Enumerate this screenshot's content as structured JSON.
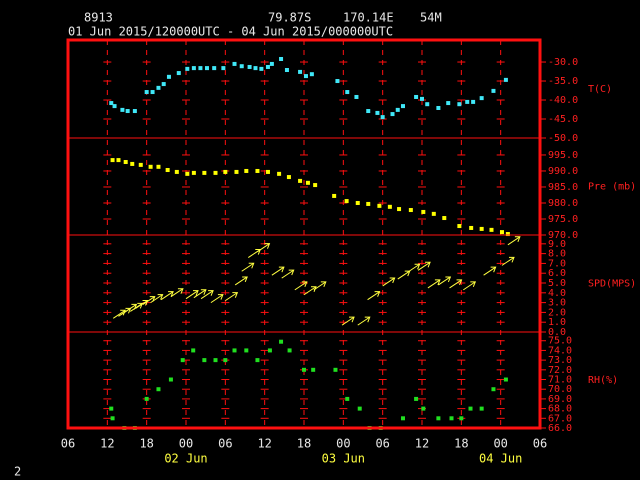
{
  "header": {
    "station": "8913",
    "lat": "79.87S",
    "lon": "170.14E",
    "elev": "54M",
    "period": "01 Jun 2015/120000UTC - 04 Jun 2015/000000UTC",
    "page": "2"
  },
  "x_axis": {
    "xlim": [
      0,
      72
    ],
    "xticks": [
      {
        "value": 0,
        "label": "06"
      },
      {
        "value": 6,
        "label": "12"
      },
      {
        "value": 12,
        "label": "18"
      },
      {
        "value": 18,
        "label": "00"
      },
      {
        "value": 24,
        "label": "06"
      },
      {
        "value": 30,
        "label": "12"
      },
      {
        "value": 36,
        "label": "18"
      },
      {
        "value": 42,
        "label": "00"
      },
      {
        "value": 48,
        "label": "06"
      },
      {
        "value": 54,
        "label": "12"
      },
      {
        "value": 60,
        "label": "18"
      },
      {
        "value": 66,
        "label": "00"
      },
      {
        "value": 72,
        "label": "06"
      }
    ],
    "dates": [
      {
        "value": 18,
        "label": "02 Jun"
      },
      {
        "value": 42,
        "label": "03 Jun"
      },
      {
        "value": 66,
        "label": "04 Jun"
      }
    ]
  },
  "chart_data": [
    {
      "type": "scatter",
      "label": "T(C)",
      "color": "#40e8f8",
      "ylim": [
        -50,
        -24.2
      ],
      "yticks": [
        {
          "value": -30,
          "label": "-30.0"
        },
        {
          "value": -35,
          "label": "-35.0"
        },
        {
          "value": -40,
          "label": "-40.0"
        },
        {
          "value": -45,
          "label": "-45.0"
        },
        {
          "value": -50,
          "label": "-50.0"
        }
      ],
      "x": [
        6.6,
        7.1,
        8.3,
        9.1,
        10.2,
        12.0,
        12.9,
        13.8,
        14.6,
        15.4,
        16.9,
        18.2,
        19.2,
        20.2,
        21.2,
        22.3,
        23.7,
        25.4,
        26.5,
        27.7,
        28.6,
        29.5,
        30.5,
        31.1,
        32.5,
        33.4,
        35.4,
        36.3,
        37.2,
        41.1,
        42.6,
        44.0,
        45.8,
        47.2,
        48.0,
        49.5,
        50.3,
        51.1,
        53.1,
        54.0,
        54.8,
        56.5,
        58.0,
        59.7,
        60.9,
        61.8,
        63.1,
        64.9,
        66.8
      ],
      "values": [
        -40.8,
        -41.6,
        -42.6,
        -42.9,
        -42.9,
        -37.9,
        -37.9,
        -36.8,
        -35.8,
        -33.9,
        -32.9,
        -31.8,
        -31.6,
        -31.6,
        -31.6,
        -31.6,
        -31.6,
        -30.5,
        -31.1,
        -31.3,
        -31.6,
        -31.8,
        -31.3,
        -30.5,
        -29.2,
        -32.1,
        -32.6,
        -33.7,
        -33.2,
        -35.0,
        -37.9,
        -39.2,
        -42.9,
        -43.4,
        -44.5,
        -43.7,
        -42.6,
        -41.6,
        -39.2,
        -39.7,
        -41.1,
        -42.1,
        -40.8,
        -41.1,
        -40.5,
        -40.5,
        -39.5,
        -37.6,
        -34.7
      ]
    },
    {
      "type": "scatter",
      "label": "Pre (mb)",
      "color": "#ffff00",
      "ylim": [
        970,
        1000.3
      ],
      "yticks": [
        {
          "value": 995,
          "label": "995.0"
        },
        {
          "value": 990,
          "label": "990.0"
        },
        {
          "value": 985,
          "label": "985.0"
        },
        {
          "value": 980,
          "label": "980.0"
        },
        {
          "value": 975,
          "label": "975.0"
        },
        {
          "value": 970,
          "label": "970.0"
        }
      ],
      "x": [
        6.8,
        7.7,
        8.8,
        9.8,
        11.1,
        12.6,
        13.8,
        15.2,
        16.6,
        18.2,
        19.2,
        20.8,
        22.5,
        24.0,
        25.7,
        27.2,
        28.9,
        30.5,
        32.2,
        33.7,
        35.4,
        36.6,
        37.7,
        40.6,
        42.5,
        44.2,
        45.8,
        47.5,
        49.1,
        50.5,
        52.3,
        54.2,
        55.8,
        57.4,
        59.7,
        61.5,
        63.1,
        64.6,
        66.2,
        67.1
      ],
      "values": [
        993.4,
        993.4,
        992.8,
        992.2,
        991.9,
        991.3,
        991.3,
        990.3,
        989.7,
        989.1,
        989.4,
        989.4,
        989.4,
        989.7,
        989.7,
        990.0,
        990.0,
        989.7,
        989.1,
        988.1,
        986.9,
        986.3,
        985.6,
        982.2,
        980.6,
        980.0,
        979.7,
        979.1,
        978.8,
        978.1,
        977.8,
        977.2,
        976.6,
        975.3,
        972.8,
        972.2,
        971.9,
        971.6,
        970.9,
        970.3
      ]
    },
    {
      "type": "vector",
      "label": "SPD(MPS)",
      "color": "#ffff40",
      "ylim": [
        0,
        9.9
      ],
      "yticks": [
        {
          "value": 9,
          "label": "9.0"
        },
        {
          "value": 8,
          "label": "8.0"
        },
        {
          "value": 7,
          "label": "7.0"
        },
        {
          "value": 6,
          "label": "6.0"
        },
        {
          "value": 5,
          "label": "5.0"
        },
        {
          "value": 4,
          "label": "4.0"
        },
        {
          "value": 3,
          "label": "3.0"
        },
        {
          "value": 2,
          "label": "2.0"
        },
        {
          "value": 1,
          "label": "1.0"
        },
        {
          "value": 0,
          "label": "0.0"
        }
      ],
      "x": [
        6.9,
        7.7,
        8.6,
        9.5,
        10.3,
        11.4,
        12.6,
        14.2,
        15.7,
        18.0,
        19.2,
        20.3,
        21.8,
        24.0,
        25.5,
        26.5,
        27.5,
        28.9,
        31.1,
        32.6,
        34.6,
        36.0,
        37.5,
        41.8,
        44.2,
        45.7,
        48.0,
        50.3,
        51.8,
        53.4,
        54.9,
        56.5,
        58.2,
        60.3,
        63.4,
        66.2,
        67.1
      ],
      "values": [
        1.4,
        1.6,
        2.0,
        2.1,
        2.4,
        2.8,
        3.0,
        3.3,
        3.6,
        3.4,
        3.5,
        3.4,
        3.0,
        3.2,
        4.8,
        6.2,
        7.6,
        8.2,
        5.8,
        5.5,
        4.3,
        3.8,
        4.3,
        0.7,
        0.7,
        3.3,
        4.7,
        5.4,
        6.1,
        6.3,
        4.5,
        4.8,
        4.5,
        4.3,
        5.8,
        6.8,
        8.9
      ]
    },
    {
      "type": "scatter",
      "label": "RH(%)",
      "color": "#20e020",
      "ylim": [
        66,
        75.9
      ],
      "yticks": [
        {
          "value": 75,
          "label": "75.0"
        },
        {
          "value": 74,
          "label": "74.0"
        },
        {
          "value": 73,
          "label": "73.0"
        },
        {
          "value": 72,
          "label": "72.0"
        },
        {
          "value": 71,
          "label": "71.0"
        },
        {
          "value": 70,
          "label": "70.0"
        },
        {
          "value": 69,
          "label": "69.0"
        },
        {
          "value": 68,
          "label": "68.0"
        },
        {
          "value": 67,
          "label": "67.0"
        },
        {
          "value": 66,
          "label": "66.0"
        }
      ],
      "x": [
        6.6,
        6.8,
        8.6,
        10.2,
        12.0,
        13.8,
        15.7,
        17.5,
        19.1,
        20.8,
        22.5,
        24.0,
        25.4,
        27.2,
        28.9,
        30.8,
        32.5,
        33.8,
        36.0,
        37.4,
        40.8,
        42.6,
        44.5,
        46.0,
        47.7,
        51.1,
        53.1,
        54.2,
        56.5,
        58.5,
        60.0,
        61.4,
        63.1,
        64.9,
        66.8
      ],
      "values": [
        68.0,
        67.0,
        66.0,
        66.0,
        69.0,
        70.0,
        71.0,
        73.0,
        74.0,
        73.0,
        73.0,
        73.0,
        74.0,
        74.0,
        73.0,
        74.0,
        74.9,
        74.0,
        72.0,
        72.0,
        72.0,
        69.0,
        68.0,
        66.0,
        66.0,
        67.0,
        69.0,
        68.0,
        67.0,
        67.0,
        67.0,
        68.0,
        68.0,
        70.0,
        71.0
      ]
    }
  ]
}
